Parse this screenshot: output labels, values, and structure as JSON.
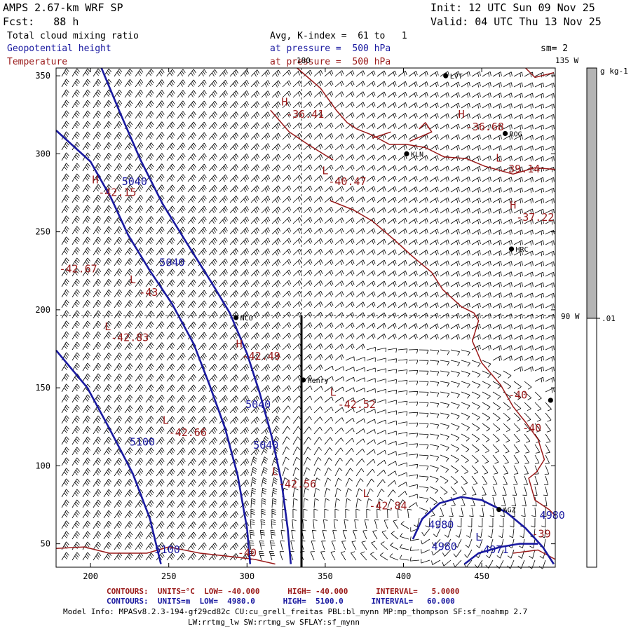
{
  "header": {
    "model": "AMPS 2.67-km WRF SP",
    "init": "Init: 12 UTC Sun 09 Nov 25",
    "forecast": "Fcst:   88 h",
    "valid": "Valid: 04 UTC Thu 13 Nov 25",
    "field1": "Total cloud mixing ratio",
    "field2": "Geopotential height",
    "field3": "Temperature",
    "avg": "Avg, K-index =  61 to   1",
    "pressure1": "at pressure =  500 hPa",
    "pressure2": "at pressure =  500 hPa",
    "smoothing": "sm= 2"
  },
  "map_labels": {
    "lon_180": "180",
    "lon_135w": "135 W",
    "lon_90w": "90 W"
  },
  "colorbar": {
    "unit": "g kg-1",
    "tick": ".01",
    "fill_color": "#b4b4b4"
  },
  "chart_data": {
    "type": "contour-map",
    "x_ticks": [
      "200",
      "250",
      "300",
      "350",
      "400",
      "450"
    ],
    "y_ticks": [
      "50",
      "100",
      "150",
      "200",
      "250",
      "300",
      "350"
    ],
    "xlim": [
      178,
      497
    ],
    "ylim": [
      35,
      355
    ],
    "stations": [
      {
        "name": "LVT",
        "x": 427,
        "y": 350
      },
      {
        "name": "ROG",
        "x": 465,
        "y": 313
      },
      {
        "name": "KLN",
        "x": 402,
        "y": 300
      },
      {
        "name": "HRC",
        "x": 469,
        "y": 239
      },
      {
        "name": "NCO",
        "x": 293,
        "y": 195
      },
      {
        "name": "Henry",
        "x": 336,
        "y": 155
      },
      {
        "name": "AGZ",
        "x": 461,
        "y": 72
      },
      {
        "name": "",
        "x": 494,
        "y": 142
      }
    ],
    "temperature_labels": [
      {
        "text": "H",
        "x": 322,
        "y": 331
      },
      {
        "text": "-36.41",
        "x": 325,
        "y": 323
      },
      {
        "text": "H",
        "x": 435,
        "y": 323
      },
      {
        "text": "-36.68",
        "x": 440,
        "y": 315
      },
      {
        "text": "L",
        "x": 348,
        "y": 287
      },
      {
        "text": "-40.47",
        "x": 352,
        "y": 280
      },
      {
        "text": "L",
        "x": 459,
        "y": 295
      },
      {
        "text": "-39.14",
        "x": 463,
        "y": 288
      },
      {
        "text": "H",
        "x": 201,
        "y": 281
      },
      {
        "text": "-42.15",
        "x": 205,
        "y": 273
      },
      {
        "text": "H",
        "x": 468,
        "y": 265
      },
      {
        "text": "-37.22",
        "x": 472,
        "y": 257
      },
      {
        "text": "-42.67",
        "x": 180,
        "y": 224
      },
      {
        "text": "L",
        "x": 225,
        "y": 217
      },
      {
        "text": "-43",
        "x": 231,
        "y": 209
      },
      {
        "text": "L",
        "x": 209,
        "y": 187
      },
      {
        "text": "-42.83",
        "x": 213,
        "y": 180
      },
      {
        "text": "H",
        "x": 293,
        "y": 176
      },
      {
        "text": "-42.49",
        "x": 297,
        "y": 168
      },
      {
        "text": "L",
        "x": 353,
        "y": 145
      },
      {
        "text": "-42.52",
        "x": 358,
        "y": 137
      },
      {
        "text": "L",
        "x": 246,
        "y": 127
      },
      {
        "text": "-42.66",
        "x": 250,
        "y": 119
      },
      {
        "text": "L",
        "x": 316,
        "y": 94
      },
      {
        "text": "-42.56",
        "x": 320,
        "y": 86
      },
      {
        "text": "L",
        "x": 374,
        "y": 80
      },
      {
        "text": "-42.84",
        "x": 378,
        "y": 72
      },
      {
        "text": "-40",
        "x": 467,
        "y": 143
      },
      {
        "text": "-40",
        "x": 476,
        "y": 122
      },
      {
        "text": "-39",
        "x": 482,
        "y": 54
      },
      {
        "text": "-40",
        "x": 294,
        "y": 42
      }
    ],
    "height_labels": [
      {
        "text": "5040",
        "x": 220,
        "y": 280
      },
      {
        "text": "5040",
        "x": 244,
        "y": 228
      },
      {
        "text": "5040",
        "x": 299,
        "y": 137
      },
      {
        "text": "5040",
        "x": 304,
        "y": 111
      },
      {
        "text": "5100",
        "x": 225,
        "y": 113
      },
      {
        "text": "5100",
        "x": 241,
        "y": 44
      },
      {
        "text": "4980",
        "x": 416,
        "y": 60
      },
      {
        "text": "4980",
        "x": 418,
        "y": 46
      },
      {
        "text": "4980",
        "x": 487,
        "y": 66
      },
      {
        "text": "L",
        "x": 446,
        "y": 52
      },
      {
        "text": "4971",
        "x": 451,
        "y": 44
      }
    ],
    "height_contours": [
      [
        [
          207,
          355
        ],
        [
          219,
          326
        ],
        [
          232,
          296
        ],
        [
          246,
          268
        ],
        [
          262,
          242
        ],
        [
          277,
          218
        ],
        [
          289,
          198
        ],
        [
          300,
          172
        ],
        [
          308,
          147
        ],
        [
          316,
          118
        ],
        [
          322,
          90
        ],
        [
          326,
          60
        ],
        [
          328,
          37
        ]
      ],
      [
        [
          178,
          315
        ],
        [
          200,
          295
        ],
        [
          213,
          272
        ],
        [
          224,
          248
        ],
        [
          238,
          225
        ],
        [
          252,
          204
        ],
        [
          266,
          178
        ],
        [
          276,
          152
        ],
        [
          286,
          124
        ],
        [
          294,
          94
        ],
        [
          300,
          60
        ],
        [
          302,
          37
        ]
      ],
      [
        [
          178,
          174
        ],
        [
          198,
          150
        ],
        [
          212,
          124
        ],
        [
          227,
          95
        ],
        [
          238,
          66
        ],
        [
          245,
          37
        ]
      ],
      [
        [
          406,
          53
        ],
        [
          412,
          66
        ],
        [
          423,
          76
        ],
        [
          437,
          80
        ],
        [
          450,
          78
        ],
        [
          466,
          70
        ],
        [
          478,
          60
        ],
        [
          489,
          48
        ],
        [
          496,
          37
        ]
      ],
      [
        [
          439,
          37
        ],
        [
          448,
          44
        ],
        [
          462,
          48
        ],
        [
          474,
          50
        ],
        [
          486,
          50
        ]
      ]
    ],
    "temp_contours": [
      [
        [
          332,
          355
        ],
        [
          347,
          342
        ],
        [
          357,
          328
        ],
        [
          364,
          320
        ],
        [
          370,
          316
        ],
        [
          380,
          312
        ],
        [
          391,
          306
        ],
        [
          402,
          306
        ],
        [
          414,
          304
        ],
        [
          426,
          298
        ],
        [
          440,
          297
        ],
        [
          452,
          292
        ],
        [
          470,
          287
        ],
        [
          484,
          291
        ],
        [
          497,
          290
        ]
      ],
      [
        [
          410,
          316
        ],
        [
          414,
          320
        ],
        [
          418,
          314
        ],
        [
          404,
          308
        ]
      ],
      [
        [
          315,
          328
        ],
        [
          327,
          314
        ],
        [
          339,
          306
        ],
        [
          355,
          296
        ]
      ],
      [
        [
          380,
          310
        ],
        [
          392,
          314
        ]
      ],
      [
        [
          478,
          355
        ],
        [
          484,
          349
        ],
        [
          496,
          352
        ]
      ],
      [
        [
          353,
          270
        ],
        [
          368,
          264
        ],
        [
          380,
          257
        ],
        [
          394,
          245
        ],
        [
          406,
          234
        ],
        [
          418,
          224
        ],
        [
          425,
          213
        ],
        [
          437,
          202
        ],
        [
          445,
          198
        ],
        [
          448,
          193
        ],
        [
          444,
          180
        ],
        [
          450,
          166
        ],
        [
          462,
          152
        ],
        [
          470,
          138
        ],
        [
          478,
          128
        ],
        [
          486,
          117
        ],
        [
          490,
          104
        ],
        [
          485,
          96
        ],
        [
          480,
          92
        ],
        [
          484,
          78
        ],
        [
          493,
          72
        ],
        [
          497,
          68
        ]
      ],
      [
        [
          178,
          47
        ],
        [
          196,
          48
        ],
        [
          212,
          44
        ],
        [
          236,
          44
        ],
        [
          250,
          48
        ],
        [
          270,
          44
        ],
        [
          288,
          42
        ],
        [
          305,
          40
        ],
        [
          318,
          37
        ]
      ],
      [
        [
          470,
          44
        ],
        [
          486,
          46
        ],
        [
          497,
          40
        ]
      ]
    ]
  },
  "footer": {
    "contours_red": "CONTOURS:  UNITS=°C  LOW= -40.000      HIGH= -40.000      INTERVAL=   5.0000",
    "contours_blue": "CONTOURS:  UNITS=m  LOW=  4980.0      HIGH=  5100.0      INTERVAL=   60.000",
    "model_info": "Model Info: MPASv8.2.3-194-gf29cd82c CU:cu_grell_freitas PBL:bl_mynn MP:mp_thompson SF:sf_noahmp 2.7",
    "model_info2": "LW:rrtmg_lw SW:rrtmg_sw SFLAY:sf_mynn"
  },
  "colors": {
    "height": "#1a1aa0",
    "temperature": "#9a1a1a",
    "barbs": "#000000"
  }
}
